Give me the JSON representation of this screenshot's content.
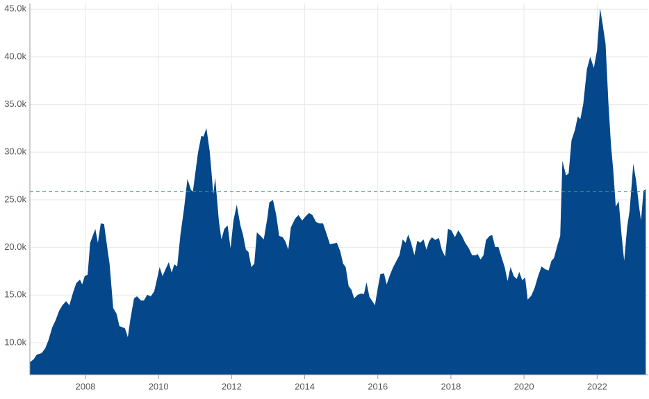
{
  "chart_data": {
    "type": "area",
    "color": "#04478a",
    "grid": true,
    "reference_line": 25880,
    "reference_color": "#3e9a84",
    "xlim": [
      2006.48,
      2023.4
    ],
    "xticks": [
      2008,
      2010,
      2012,
      2014,
      2016,
      2018,
      2020,
      2022
    ],
    "ylim": [
      6650,
      45600
    ],
    "yticks": [
      {
        "value": 10000,
        "label": "10.0k"
      },
      {
        "value": 15000,
        "label": "15.0k"
      },
      {
        "value": 20000,
        "label": "20.0k"
      },
      {
        "value": 25000,
        "label": "25.0k"
      },
      {
        "value": 30000,
        "label": "30.0k"
      },
      {
        "value": 35000,
        "label": "35.0k"
      },
      {
        "value": 40000,
        "label": "40.0k"
      },
      {
        "value": 45000,
        "label": "45.0k"
      }
    ],
    "x": [
      2006.48,
      2006.58,
      2006.67,
      2006.8,
      2006.9,
      2006.99,
      2007.09,
      2007.18,
      2007.28,
      2007.37,
      2007.47,
      2007.56,
      2007.66,
      2007.75,
      2007.85,
      2007.91,
      2007.98,
      2008.06,
      2008.13,
      2008.27,
      2008.34,
      2008.42,
      2008.51,
      2008.61,
      2008.66,
      2008.76,
      2008.85,
      2008.93,
      2009.08,
      2009.16,
      2009.23,
      2009.33,
      2009.41,
      2009.52,
      2009.6,
      2009.69,
      2009.79,
      2009.88,
      2009.96,
      2010.03,
      2010.11,
      2010.2,
      2010.28,
      2010.36,
      2010.43,
      2010.51,
      2010.6,
      2010.7,
      2010.79,
      2010.89,
      2010.94,
      2011.08,
      2011.17,
      2011.23,
      2011.31,
      2011.4,
      2011.5,
      2011.55,
      2011.65,
      2011.72,
      2011.8,
      2011.89,
      2011.97,
      2012.05,
      2012.14,
      2012.24,
      2012.31,
      2012.39,
      2012.46,
      2012.54,
      2012.62,
      2012.69,
      2012.79,
      2012.88,
      2012.98,
      2013.03,
      2013.13,
      2013.22,
      2013.3,
      2013.4,
      2013.47,
      2013.55,
      2013.62,
      2013.74,
      2013.83,
      2013.93,
      2014.02,
      2014.12,
      2014.21,
      2014.31,
      2014.4,
      2014.5,
      2014.59,
      2014.69,
      2014.78,
      2014.88,
      2014.97,
      2015.05,
      2015.12,
      2015.2,
      2015.28,
      2015.35,
      2015.45,
      2015.54,
      2015.62,
      2015.69,
      2015.77,
      2015.85,
      2015.92,
      2016.0,
      2016.07,
      2016.17,
      2016.24,
      2016.34,
      2016.42,
      2016.49,
      2016.59,
      2016.68,
      2016.76,
      2016.83,
      2016.91,
      2017.0,
      2017.08,
      2017.16,
      2017.25,
      2017.33,
      2017.4,
      2017.48,
      2017.57,
      2017.67,
      2017.75,
      2017.84,
      2017.92,
      2018.01,
      2018.11,
      2018.2,
      2018.3,
      2018.39,
      2018.49,
      2018.58,
      2018.68,
      2018.73,
      2018.81,
      2018.89,
      2018.96,
      2019.06,
      2019.13,
      2019.21,
      2019.3,
      2019.38,
      2019.47,
      2019.55,
      2019.63,
      2019.72,
      2019.8,
      2019.87,
      2019.95,
      2020.03,
      2020.1,
      2020.2,
      2020.29,
      2020.39,
      2020.48,
      2020.58,
      2020.67,
      2020.75,
      2020.82,
      2020.92,
      2020.99,
      2021.05,
      2021.15,
      2021.22,
      2021.3,
      2021.39,
      2021.47,
      2021.54,
      2021.62,
      2021.72,
      2021.81,
      2021.91,
      2022.0,
      2022.08,
      2022.15,
      2022.23,
      2022.31,
      2022.38,
      2022.44,
      2022.51,
      2022.59,
      2022.67,
      2022.74,
      2022.82,
      2022.89,
      2022.99,
      2023.07,
      2023.14,
      2023.2,
      2023.27,
      2023.33
    ],
    "values": [
      7960,
      8250,
      8760,
      8910,
      9420,
      10290,
      11600,
      12330,
      13350,
      13930,
      14370,
      13930,
      15250,
      16260,
      16630,
      16120,
      16990,
      17140,
      20490,
      21950,
      20490,
      22530,
      22450,
      19620,
      18300,
      13640,
      13060,
      11750,
      11530,
      10580,
      12480,
      14660,
      14880,
      14440,
      14440,
      15030,
      14880,
      15390,
      16700,
      17940,
      16990,
      17790,
      18450,
      17360,
      18230,
      18010,
      21360,
      24130,
      27190,
      26020,
      25880,
      29960,
      31700,
      31630,
      32510,
      30100,
      25590,
      27340,
      22820,
      20850,
      21950,
      22310,
      19910,
      22820,
      24490,
      22310,
      21360,
      19760,
      19540,
      17940,
      18300,
      21580,
      21220,
      20850,
      23180,
      24710,
      25000,
      23400,
      21220,
      21070,
      20630,
      19760,
      22090,
      23040,
      23400,
      22820,
      23260,
      23620,
      23400,
      22670,
      22530,
      22530,
      21510,
      20340,
      20410,
      20490,
      19620,
      18300,
      17940,
      15970,
      15530,
      14660,
      15030,
      15170,
      15100,
      16340,
      14810,
      14370,
      13930,
      15760,
      17210,
      17280,
      16120,
      17210,
      17940,
      18450,
      19180,
      20850,
      20490,
      21360,
      20490,
      19180,
      20710,
      20490,
      20850,
      19760,
      20630,
      21070,
      20780,
      21000,
      19760,
      19030,
      21950,
      21800,
      21070,
      21800,
      21220,
      20490,
      19910,
      19180,
      19180,
      19320,
      18740,
      19180,
      20780,
      21220,
      21290,
      20050,
      20050,
      19030,
      17940,
      16480,
      17940,
      16990,
      16700,
      17430,
      16560,
      16850,
      14520,
      14950,
      15760,
      17060,
      18010,
      17720,
      17580,
      18600,
      18890,
      20340,
      21220,
      29080,
      27550,
      27770,
      31270,
      32290,
      33740,
      33450,
      35050,
      38700,
      40010,
      38840,
      40740,
      45110,
      43430,
      41390,
      35050,
      30690,
      28140,
      24280,
      24860,
      21220,
      18600,
      22090,
      23910,
      28790,
      26900,
      24490,
      22820,
      25950,
      26100
    ]
  }
}
